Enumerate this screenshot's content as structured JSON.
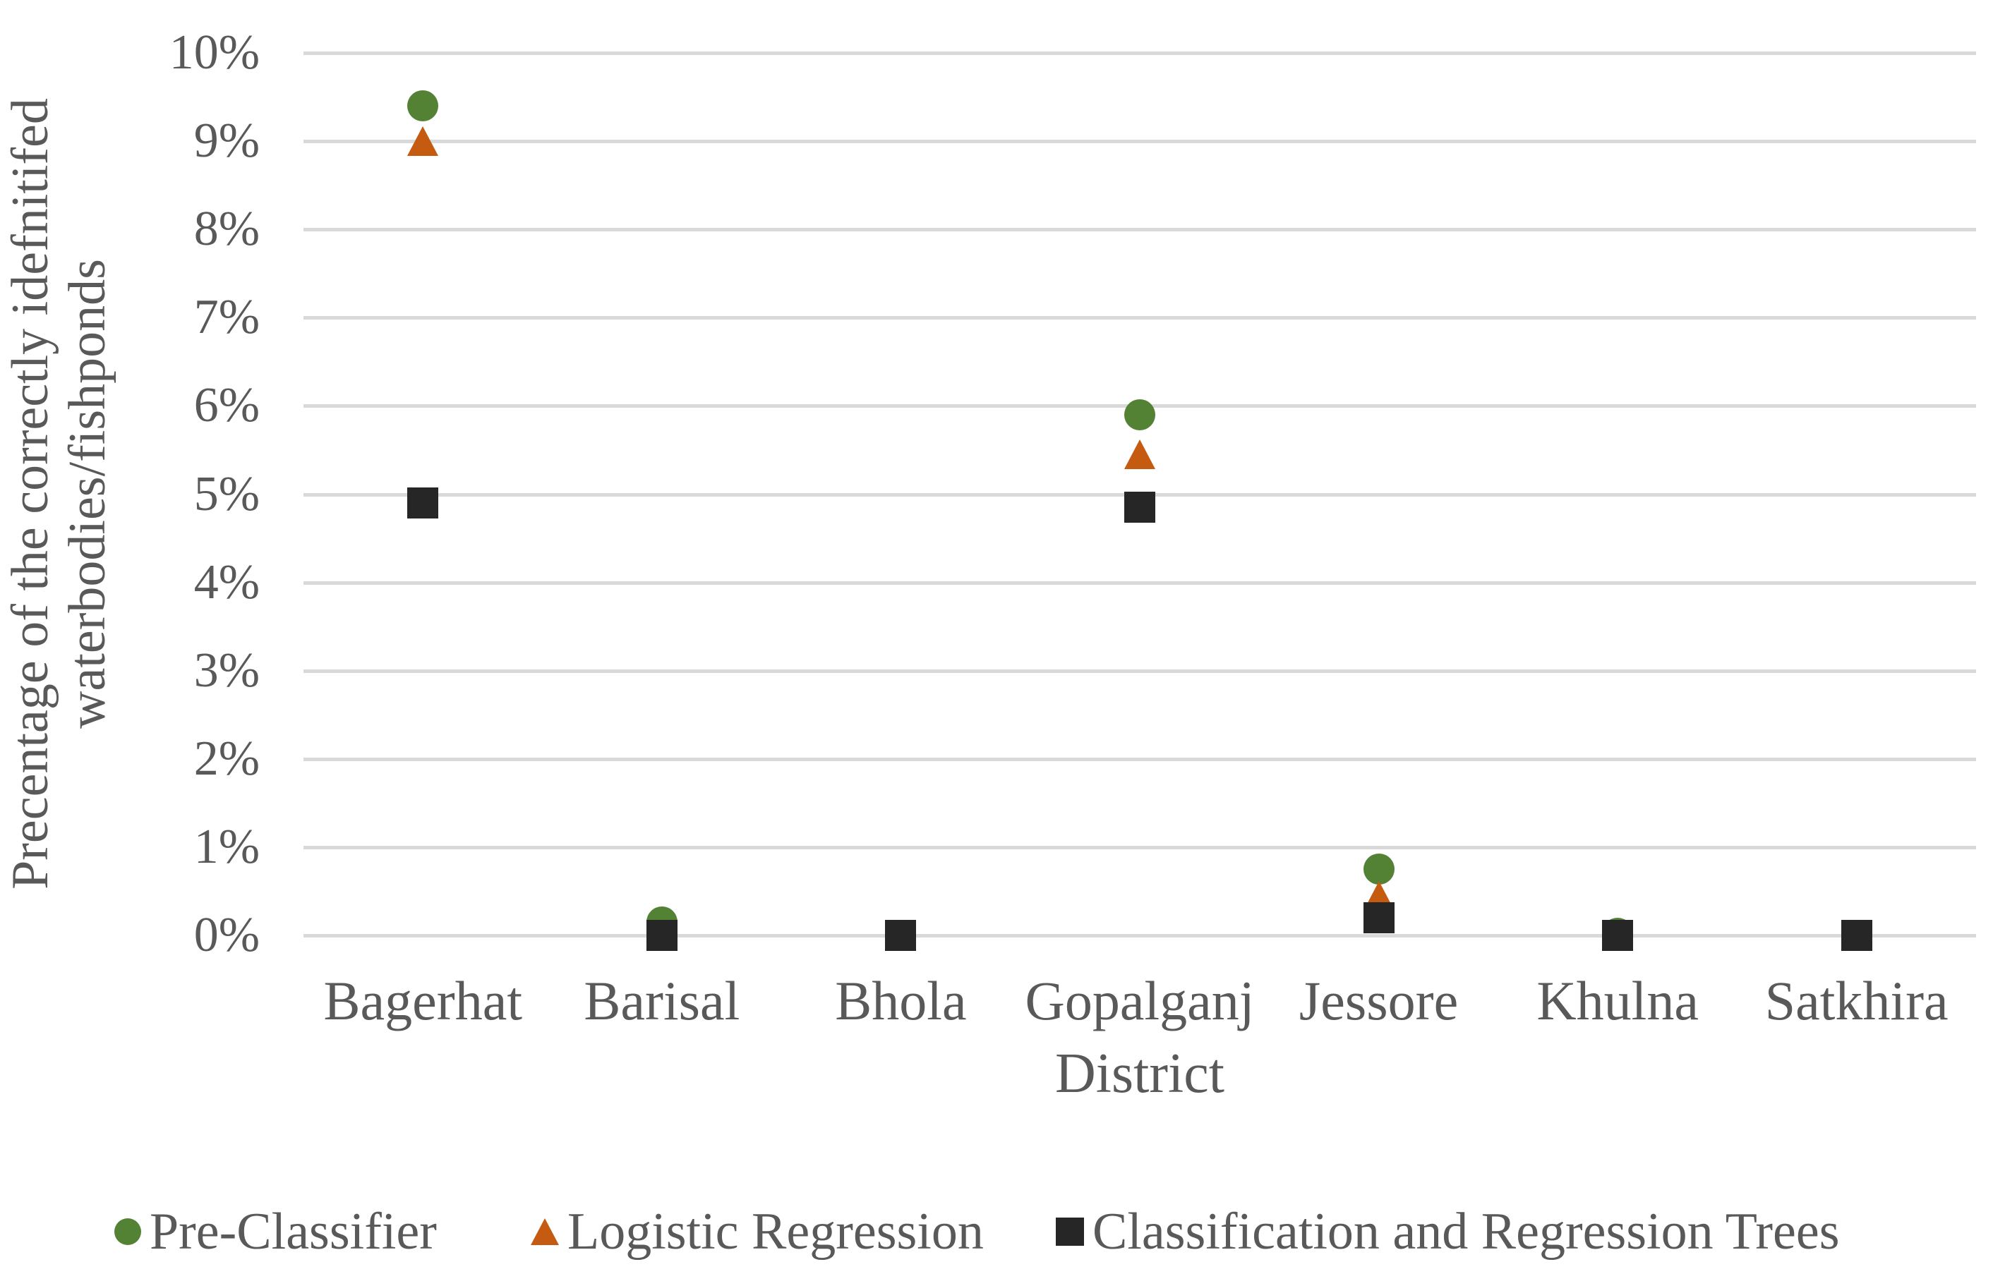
{
  "chart": {
    "y_axis_title_line1": "Precentage of the correctly idefnitifed",
    "y_axis_title_line2": "waterbodies/fishponds",
    "x_axis_title": "District"
  },
  "chart_data": {
    "type": "scatter",
    "categories": [
      "Bagerhat",
      "Barisal",
      "Bhola",
      "Gopalganj",
      "Jessore",
      "Khulna",
      "Satkhira"
    ],
    "series": [
      {
        "name": "Pre-Classifier",
        "marker": "circle",
        "color": "#548235",
        "values": [
          9.4,
          0.15,
          0.0,
          5.9,
          0.75,
          0.02,
          0.0
        ]
      },
      {
        "name": "Logistic Regression",
        "marker": "triangle",
        "color": "#C55A11",
        "values": [
          9.0,
          0.0,
          0.0,
          5.45,
          0.45,
          0.0,
          0.0
        ]
      },
      {
        "name": "Classification and Regression Trees",
        "marker": "square",
        "color": "#262626",
        "values": [
          4.9,
          0.0,
          0.0,
          4.85,
          0.2,
          0.0,
          0.0
        ]
      }
    ],
    "title": "",
    "xlabel": "District",
    "ylabel": "Precentage of the correctly idefnitifed waterbodies/fishponds",
    "ylim": [
      0,
      10
    ],
    "y_ticks": [
      "10%",
      "9%",
      "8%",
      "7%",
      "6%",
      "5%",
      "4%",
      "3%",
      "2%",
      "1%",
      "0%"
    ],
    "grid": true,
    "legend_position": "bottom",
    "colors": {
      "text": "#595959",
      "gridline": "#D9D9D9"
    }
  }
}
